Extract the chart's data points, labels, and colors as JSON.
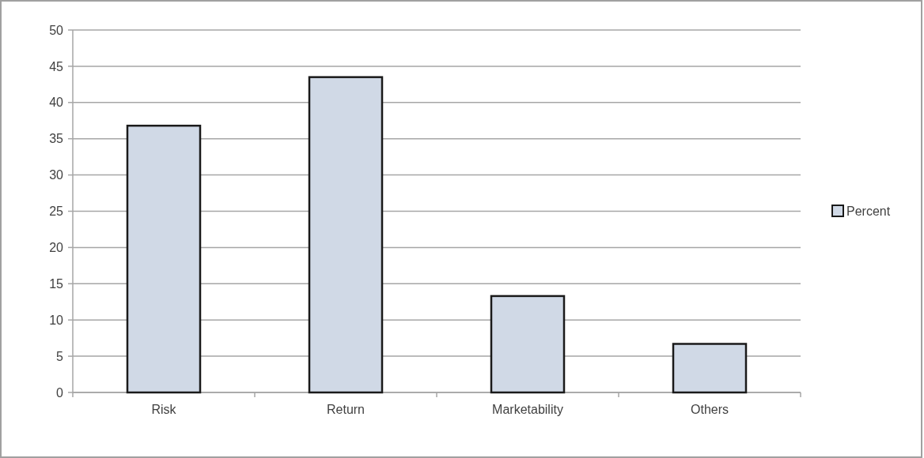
{
  "chart_data": {
    "type": "bar",
    "categories": [
      "Risk",
      "Return",
      "Marketability",
      "Others"
    ],
    "series": [
      {
        "name": "Percent",
        "color": "#d0d9e6",
        "values": [
          36.8,
          43.5,
          13.3,
          6.7
        ]
      }
    ],
    "ylim": [
      0,
      50
    ],
    "yticks": [
      0,
      5,
      10,
      15,
      20,
      25,
      30,
      35,
      40,
      45,
      50
    ],
    "grid": "y",
    "legend": "right"
  }
}
